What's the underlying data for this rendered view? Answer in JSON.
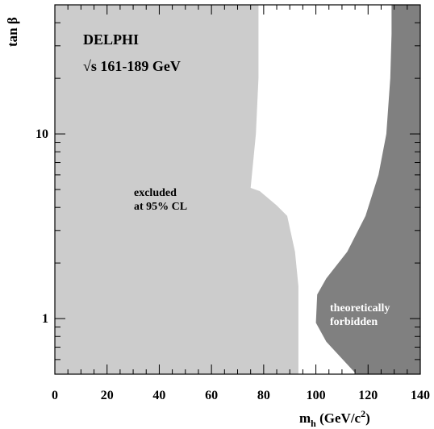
{
  "chart_data": {
    "type": "area",
    "x_axis": {
      "range": [
        0,
        140
      ],
      "ticks": [
        0,
        20,
        40,
        60,
        80,
        100,
        120,
        140
      ],
      "minor_step": 5
    },
    "y_axis": {
      "scale": "log",
      "range": [
        0.5,
        50
      ],
      "ticks": [
        1,
        10
      ]
    },
    "xlabel": {
      "main": "m",
      "sub": "h",
      "rest": " (GeV/c",
      "sup": "2",
      "close": ")"
    },
    "ylabel": "tan β",
    "annotations": {
      "experiment": "DELPHI",
      "energy": "√s 161-189 GeV",
      "excluded_line1": "excluded",
      "excluded_line2": "at 95% CL",
      "forbidden_line1": "theoretically",
      "forbidden_line2": "forbidden"
    },
    "regions": [
      {
        "name": "excluded at 95% CL",
        "color": "#cccccc",
        "boundary": [
          [
            93.3,
            0.5
          ],
          [
            93.3,
            1.5
          ],
          [
            92,
            2.3
          ],
          [
            89,
            3.6
          ],
          [
            85,
            4.1
          ],
          [
            78.5,
            4.9
          ],
          [
            75,
            5.1
          ],
          [
            77,
            10
          ],
          [
            78,
            20
          ],
          [
            78,
            50
          ]
        ]
      },
      {
        "name": "theoretically forbidden",
        "color": "#808080",
        "boundary": [
          [
            115.5,
            0.5
          ],
          [
            104,
            0.75
          ],
          [
            100,
            0.95
          ],
          [
            100.5,
            1.35
          ],
          [
            104,
            1.65
          ],
          [
            112,
            2.3
          ],
          [
            119,
            3.6
          ],
          [
            124,
            6
          ],
          [
            127,
            10
          ],
          [
            128.5,
            20
          ],
          [
            129,
            35
          ],
          [
            129,
            50
          ]
        ]
      }
    ]
  }
}
